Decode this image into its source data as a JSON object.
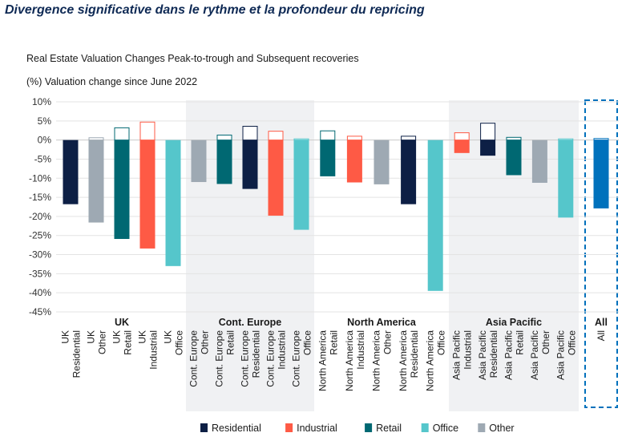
{
  "page": {
    "title": "Divergence significative dans le rythme et la profondeur du repricing"
  },
  "chart_data": {
    "type": "bar",
    "title": "Real Estate Valuation Changes Peak-to-trough and Subsequent recoveries",
    "ylabel": "(%) Valuation change since June 2022",
    "ylim": [
      -45,
      10
    ],
    "yticks": [
      10,
      5,
      0,
      -5,
      -10,
      -15,
      -20,
      -25,
      -30,
      -35,
      -40,
      -45
    ],
    "series_colors": {
      "Residential": "#0d1f45",
      "Industrial": "#fe5a45",
      "Retail": "#006872",
      "Office": "#55c6cb",
      "Other": "#9ea9b3"
    },
    "legend": [
      "Residential",
      "Industrial",
      "Retail",
      "Office",
      "Other"
    ],
    "groups": [
      {
        "name": "UK",
        "shaded": false,
        "bars": [
          {
            "label": "UK Residential",
            "sector": "Residential",
            "trough": -16.8,
            "recovery": 0
          },
          {
            "label": "UK Other",
            "sector": "Other",
            "trough": -21.6,
            "recovery": 0.6
          },
          {
            "label": "UK Retail",
            "sector": "Retail",
            "trough": -25.9,
            "recovery": 3.2
          },
          {
            "label": "UK Industrial",
            "sector": "Industrial",
            "trough": -28.4,
            "recovery": 4.7
          },
          {
            "label": "UK Office",
            "sector": "Office",
            "trough": -33.0,
            "recovery": 0
          }
        ]
      },
      {
        "name": "Cont. Europe",
        "shaded": true,
        "bars": [
          {
            "label": "Cont. Europe Other",
            "sector": "Other",
            "trough": -11.0,
            "recovery": 0
          },
          {
            "label": "Cont. Europe Retail",
            "sector": "Retail",
            "trough": -11.5,
            "recovery": 1.3
          },
          {
            "label": "Cont. Europe Residential",
            "sector": "Residential",
            "trough": -12.8,
            "recovery": 3.6
          },
          {
            "label": "Cont. Europe Industrial",
            "sector": "Industrial",
            "trough": -19.8,
            "recovery": 2.3
          },
          {
            "label": "Cont. Europe Office",
            "sector": "Office",
            "trough": -23.5,
            "recovery": 0.3
          }
        ]
      },
      {
        "name": "North America",
        "shaded": false,
        "bars": [
          {
            "label": "North America Retail",
            "sector": "Retail",
            "trough": -9.5,
            "recovery": 2.4
          },
          {
            "label": "North America Industrial",
            "sector": "Industrial",
            "trough": -11.1,
            "recovery": 1.0
          },
          {
            "label": "North America Other",
            "sector": "Other",
            "trough": -11.6,
            "recovery": 0
          },
          {
            "label": "North America Residential",
            "sector": "Residential",
            "trough": -16.8,
            "recovery": 1.0
          },
          {
            "label": "North America Office",
            "sector": "Office",
            "trough": -39.5,
            "recovery": 0
          }
        ]
      },
      {
        "name": "Asia Pacific",
        "shaded": true,
        "bars": [
          {
            "label": "Asia Pacific Industrial",
            "sector": "Industrial",
            "trough": -3.4,
            "recovery": 1.9
          },
          {
            "label": "Asia Pacific Residential",
            "sector": "Residential",
            "trough": -4.1,
            "recovery": 4.4
          },
          {
            "label": "Asia Pacific Retail",
            "sector": "Retail",
            "trough": -9.2,
            "recovery": 0.7
          },
          {
            "label": "Asia Pacific Other",
            "sector": "Other",
            "trough": -11.2,
            "recovery": 0
          },
          {
            "label": "Asia Pacific Office",
            "sector": "Office",
            "trough": -20.3,
            "recovery": 0.3
          }
        ]
      },
      {
        "name": "All",
        "shaded": false,
        "dashed": true,
        "bars": [
          {
            "label": "All",
            "sector": "All",
            "color": "#0071bc",
            "trough": -17.9,
            "recovery": 0.4
          }
        ]
      }
    ]
  }
}
